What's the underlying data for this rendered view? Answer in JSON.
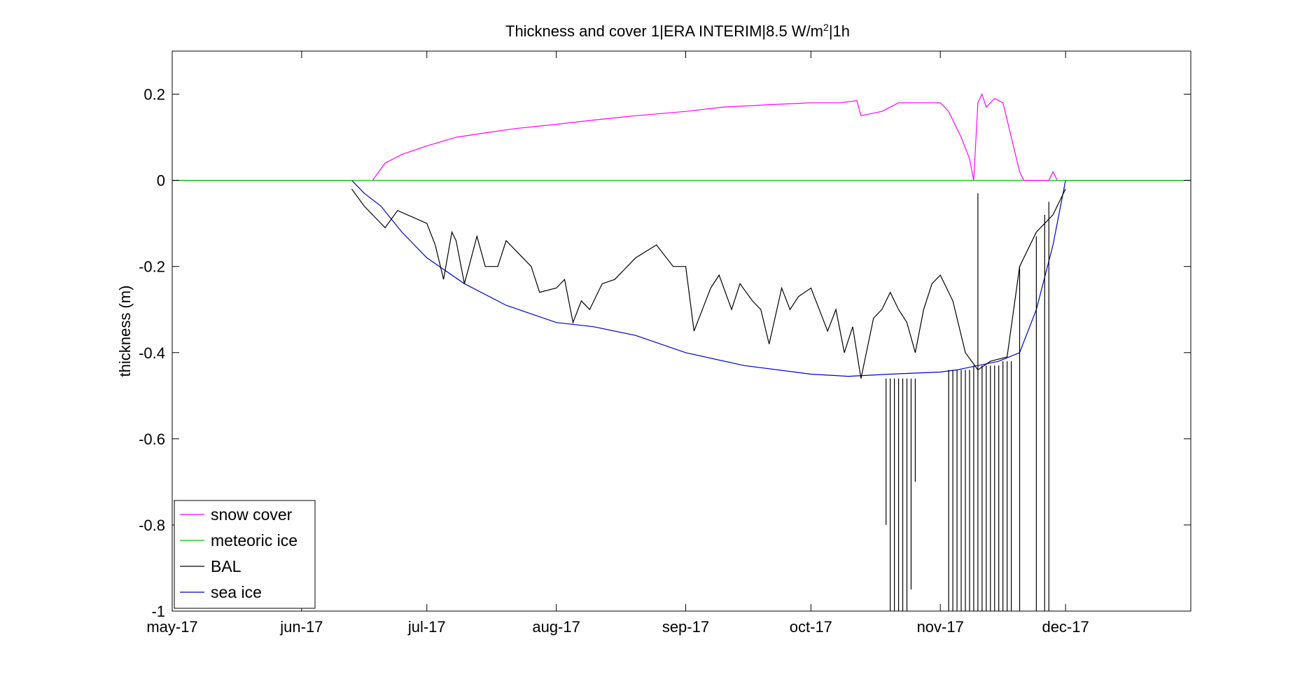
{
  "chart_data": {
    "type": "line",
    "title": "Thickness and cover 1|ERA INTERIM|8.5 W/m",
    "title_sup": "2",
    "title_suffix": "|1h",
    "ylabel": "thickness (m)",
    "xlabel": "",
    "xlim": [
      "2017-05-01",
      "2017-12-31"
    ],
    "ylim": [
      -1,
      0.3
    ],
    "x_ticks": [
      {
        "date": "2017-05-01",
        "label": "may-17"
      },
      {
        "date": "2017-06-01",
        "label": "jun-17"
      },
      {
        "date": "2017-07-01",
        "label": "jul-17"
      },
      {
        "date": "2017-08-01",
        "label": "aug-17"
      },
      {
        "date": "2017-09-01",
        "label": "sep-17"
      },
      {
        "date": "2017-10-01",
        "label": "oct-17"
      },
      {
        "date": "2017-11-01",
        "label": "nov-17"
      },
      {
        "date": "2017-12-01",
        "label": "dec-17"
      }
    ],
    "y_ticks": [
      {
        "value": 0.2,
        "label": "0.2"
      },
      {
        "value": 0,
        "label": "0"
      },
      {
        "value": -0.2,
        "label": "-0.2"
      },
      {
        "value": -0.4,
        "label": "-0.4"
      },
      {
        "value": -0.6,
        "label": "-0.6"
      },
      {
        "value": -0.8,
        "label": "-0.8"
      },
      {
        "value": -1,
        "label": "-1"
      }
    ],
    "grid": false,
    "legend_position": "bottom-left",
    "series": [
      {
        "name": "snow cover",
        "color": "#ff00ff",
        "x": [
          "2017-06-18",
          "2017-06-21",
          "2017-06-25",
          "2017-07-01",
          "2017-07-08",
          "2017-07-15",
          "2017-07-22",
          "2017-08-01",
          "2017-08-10",
          "2017-08-20",
          "2017-09-01",
          "2017-09-10",
          "2017-09-20",
          "2017-10-01",
          "2017-10-08",
          "2017-10-12",
          "2017-10-13",
          "2017-10-18",
          "2017-10-22",
          "2017-10-25",
          "2017-11-01",
          "2017-11-03",
          "2017-11-06",
          "2017-11-08",
          "2017-11-09",
          "2017-11-10",
          "2017-11-11",
          "2017-11-12",
          "2017-11-14",
          "2017-11-16",
          "2017-11-18",
          "2017-11-20",
          "2017-11-21",
          "2017-11-22",
          "2017-11-27",
          "2017-11-28",
          "2017-11-29"
        ],
        "y": [
          0,
          0.04,
          0.06,
          0.08,
          0.1,
          0.11,
          0.12,
          0.13,
          0.14,
          0.15,
          0.16,
          0.17,
          0.175,
          0.18,
          0.18,
          0.185,
          0.15,
          0.16,
          0.18,
          0.18,
          0.18,
          0.16,
          0.1,
          0.05,
          0.0,
          0.18,
          0.2,
          0.17,
          0.19,
          0.18,
          0.1,
          0.02,
          0.0,
          0.0,
          0.0,
          0.02,
          0.0
        ]
      },
      {
        "name": "meteoric ice",
        "color": "#00cc00",
        "x": [
          "2017-05-01",
          "2017-12-31"
        ],
        "y": [
          0,
          0
        ]
      },
      {
        "name": "BAL",
        "color": "#000000",
        "x": [
          "2017-06-13",
          "2017-06-16",
          "2017-06-19",
          "2017-06-21",
          "2017-06-24",
          "2017-07-01",
          "2017-07-03",
          "2017-07-05",
          "2017-07-07",
          "2017-07-08",
          "2017-07-10",
          "2017-07-13",
          "2017-07-15",
          "2017-07-18",
          "2017-07-20",
          "2017-07-23",
          "2017-07-26",
          "2017-07-28",
          "2017-08-01",
          "2017-08-03",
          "2017-08-05",
          "2017-08-07",
          "2017-08-09",
          "2017-08-12",
          "2017-08-15",
          "2017-08-18",
          "2017-08-20",
          "2017-08-25",
          "2017-08-29",
          "2017-09-01",
          "2017-09-03",
          "2017-09-05",
          "2017-09-07",
          "2017-09-09",
          "2017-09-12",
          "2017-09-14",
          "2017-09-17",
          "2017-09-19",
          "2017-09-21",
          "2017-09-24",
          "2017-09-26",
          "2017-09-28",
          "2017-10-01",
          "2017-10-03",
          "2017-10-05",
          "2017-10-07",
          "2017-10-09",
          "2017-10-11",
          "2017-10-13",
          "2017-10-16",
          "2017-10-18",
          "2017-10-20",
          "2017-10-22",
          "2017-10-24",
          "2017-10-26",
          "2017-10-28",
          "2017-10-30",
          "2017-11-01",
          "2017-11-04",
          "2017-11-07",
          "2017-11-10",
          "2017-11-13",
          "2017-11-17",
          "2017-11-20",
          "2017-11-24",
          "2017-11-28",
          "2017-12-01"
        ],
        "y": [
          -0.02,
          -0.06,
          -0.09,
          -0.11,
          -0.07,
          -0.1,
          -0.15,
          -0.23,
          -0.12,
          -0.14,
          -0.24,
          -0.13,
          -0.2,
          -0.2,
          -0.14,
          -0.17,
          -0.2,
          -0.26,
          -0.25,
          -0.23,
          -0.33,
          -0.28,
          -0.3,
          -0.24,
          -0.23,
          -0.2,
          -0.18,
          -0.15,
          -0.2,
          -0.2,
          -0.35,
          -0.3,
          -0.25,
          -0.22,
          -0.3,
          -0.24,
          -0.28,
          -0.3,
          -0.38,
          -0.25,
          -0.3,
          -0.27,
          -0.25,
          -0.3,
          -0.35,
          -0.3,
          -0.4,
          -0.34,
          -0.46,
          -0.32,
          -0.3,
          -0.26,
          -0.3,
          -0.33,
          -0.4,
          -0.3,
          -0.24,
          -0.22,
          -0.28,
          -0.4,
          -0.44,
          -0.42,
          -0.41,
          -0.2,
          -0.12,
          -0.08,
          -0.02
        ]
      },
      {
        "name": "sea ice",
        "color": "#0000cc",
        "x": [
          "2017-05-01",
          "2017-06-13",
          "2017-06-16",
          "2017-06-20",
          "2017-06-25",
          "2017-07-01",
          "2017-07-10",
          "2017-07-20",
          "2017-08-01",
          "2017-08-10",
          "2017-08-20",
          "2017-09-01",
          "2017-09-15",
          "2017-10-01",
          "2017-10-10",
          "2017-10-20",
          "2017-11-01",
          "2017-11-05",
          "2017-11-10",
          "2017-11-15",
          "2017-11-20",
          "2017-11-24",
          "2017-11-28",
          "2017-12-01",
          "2017-12-31"
        ],
        "y": [
          0,
          0,
          -0.03,
          -0.06,
          -0.12,
          -0.18,
          -0.24,
          -0.29,
          -0.33,
          -0.34,
          -0.36,
          -0.4,
          -0.43,
          -0.45,
          -0.455,
          -0.45,
          -0.445,
          -0.44,
          -0.43,
          -0.42,
          -0.4,
          -0.3,
          -0.15,
          0,
          0
        ]
      }
    ],
    "spikes": {
      "series": "BAL",
      "color": "#000000",
      "x": [
        "2017-10-19",
        "2017-10-20",
        "2017-10-21",
        "2017-10-22",
        "2017-10-23",
        "2017-10-24",
        "2017-10-25",
        "2017-10-26",
        "2017-11-03",
        "2017-11-04",
        "2017-11-05",
        "2017-11-06",
        "2017-11-07",
        "2017-11-08",
        "2017-11-09",
        "2017-11-10",
        "2017-11-11",
        "2017-11-12",
        "2017-11-13",
        "2017-11-14",
        "2017-11-15",
        "2017-11-16",
        "2017-11-17",
        "2017-11-18",
        "2017-11-20",
        "2017-11-24",
        "2017-11-26",
        "2017-11-27"
      ],
      "y_top": [
        -0.46,
        -0.46,
        -0.46,
        -0.46,
        -0.46,
        -0.46,
        -0.46,
        -0.46,
        -0.44,
        -0.44,
        -0.44,
        -0.44,
        -0.44,
        -0.44,
        -0.43,
        -0.03,
        -0.43,
        -0.43,
        -0.43,
        -0.43,
        -0.43,
        -0.42,
        -0.42,
        -0.42,
        -0.2,
        -0.13,
        -0.08,
        -0.05
      ],
      "y_bottom": [
        -0.8,
        -1,
        -1,
        -1,
        -1,
        -1,
        -0.95,
        -0.7,
        -1,
        -1,
        -1,
        -1,
        -1,
        -1,
        -1,
        -1,
        -1,
        -1,
        -1,
        -1,
        -1,
        -1,
        -1,
        -1,
        -1,
        -1,
        -1,
        -1
      ]
    }
  }
}
